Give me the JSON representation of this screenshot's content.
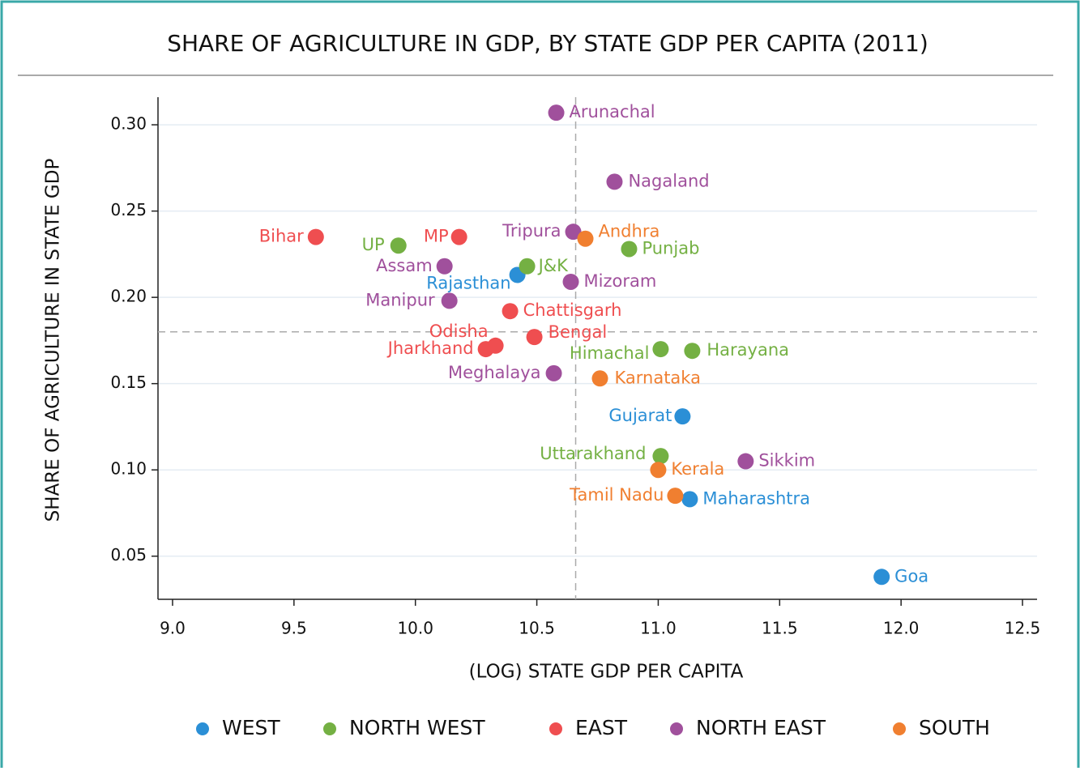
{
  "chart_data": {
    "type": "scatter",
    "title": "SHARE OF AGRICULTURE IN GDP, BY STATE GDP PER CAPITA (2011)",
    "xlabel": "(LOG) STATE GDP PER CAPITA",
    "ylabel": "SHARE OF AGRICULTURE IN STATE GDP",
    "xlim": [
      8.94,
      12.56
    ],
    "ylim": [
      0.025,
      0.316
    ],
    "xticks": [
      {
        "value": 9.0,
        "label": "9.0"
      },
      9.5,
      {
        "value": 10.0,
        "label": "10.0"
      },
      10.5,
      {
        "value": 11.0,
        "label": "11.0"
      },
      11.5,
      {
        "value": 12.0,
        "label": "12.0"
      },
      12.5
    ],
    "yticks": [
      0.05,
      {
        "value": 0.1,
        "label": "0.10"
      },
      0.15,
      {
        "value": 0.2,
        "label": "0.20"
      },
      0.25,
      {
        "value": 0.3,
        "label": "0.30"
      }
    ],
    "grid": true,
    "reference_lines": {
      "x": 10.66,
      "y": 0.18
    },
    "legend": "bottom",
    "series": [
      {
        "name": "WEST",
        "color": "#2b8fd6",
        "labels": [
          "Rajasthan",
          "Gujarat",
          "Maharashtra",
          "Goa"
        ],
        "x": [
          10.42,
          11.1,
          11.13,
          11.92
        ],
        "values": [
          0.213,
          0.131,
          0.083,
          0.038
        ]
      },
      {
        "name": "NORTH WEST",
        "color": "#74b043",
        "labels": [
          "UP",
          "Punjab",
          "J&K",
          "Himachal",
          "Harayana",
          "Uttarakhand"
        ],
        "x": [
          9.93,
          10.88,
          10.46,
          11.01,
          11.14,
          11.01
        ],
        "values": [
          0.23,
          0.228,
          0.218,
          0.17,
          0.169,
          0.108
        ]
      },
      {
        "name": "EAST",
        "color": "#ef4e50",
        "labels": [
          "Bihar",
          "MP",
          "Chattisgarh",
          "Bengal",
          "Odisha",
          "Jharkhand"
        ],
        "x": [
          9.59,
          10.18,
          10.39,
          10.49,
          10.33,
          10.29
        ],
        "values": [
          0.235,
          0.235,
          0.192,
          0.177,
          0.172,
          0.17
        ]
      },
      {
        "name": "NORTH EAST",
        "color": "#a0509c",
        "labels": [
          "Arunachal",
          "Nagaland",
          "Tripura",
          "Assam",
          "Mizoram",
          "Manipur",
          "Meghalaya",
          "Sikkim"
        ],
        "x": [
          10.58,
          10.82,
          10.65,
          10.12,
          10.64,
          10.14,
          10.57,
          11.36
        ],
        "values": [
          0.307,
          0.267,
          0.238,
          0.218,
          0.209,
          0.198,
          0.156,
          0.105
        ]
      },
      {
        "name": "SOUTH",
        "color": "#f07f30",
        "labels": [
          "Andhra",
          "Karnataka",
          "Kerala",
          "Tamil Nadu"
        ],
        "x": [
          10.7,
          10.76,
          11.0,
          11.07
        ],
        "values": [
          0.234,
          0.153,
          0.1,
          0.085
        ]
      }
    ]
  }
}
